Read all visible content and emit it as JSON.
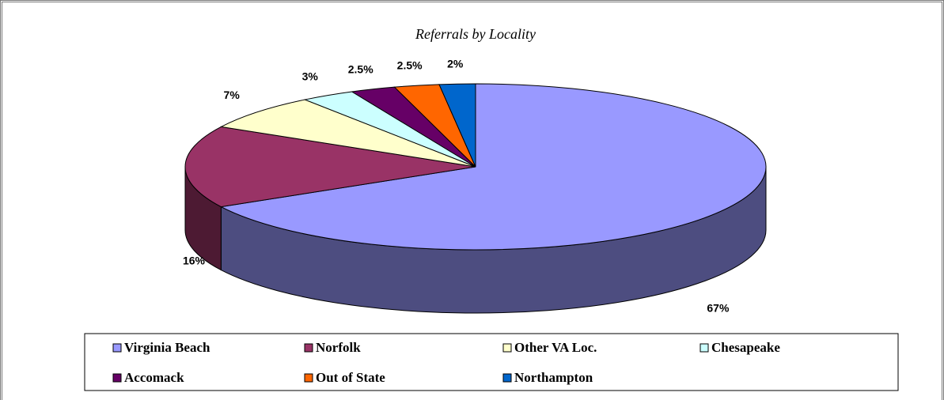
{
  "chart_data": {
    "type": "pie",
    "title": "Referrals by Locality",
    "categories": [
      "Virginia Beach",
      "Norfolk",
      "Other VA Loc.",
      "Chesapeake",
      "Accomack",
      "Out of State",
      "Northampton"
    ],
    "values": [
      67,
      16,
      7,
      3,
      2.5,
      2.5,
      2
    ],
    "value_labels": [
      "67%",
      "16%",
      "7%",
      "3%",
      "2.5%",
      "2.5%",
      "2%"
    ],
    "colors": [
      "#9999ff",
      "#993366",
      "#ffffcc",
      "#ccffff",
      "#660066",
      "#ff6600",
      "#0066cc"
    ],
    "legend": "bottom"
  }
}
